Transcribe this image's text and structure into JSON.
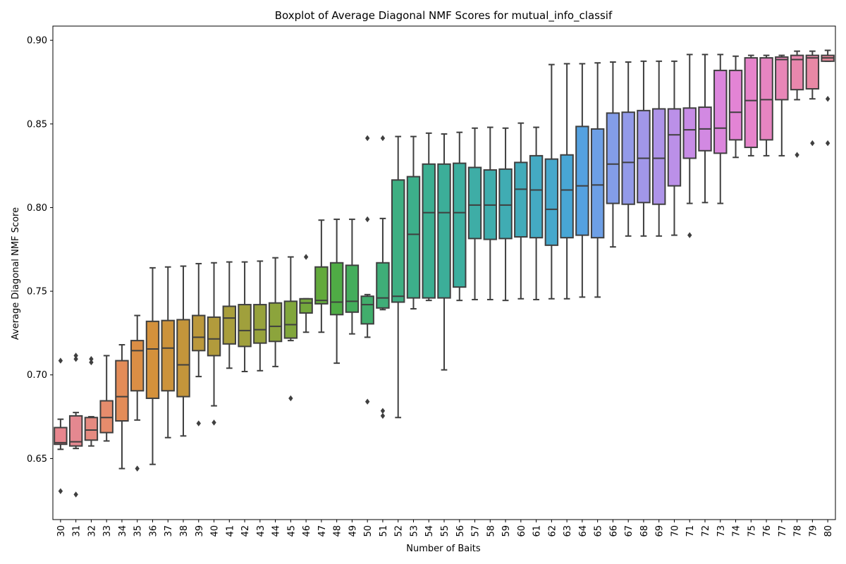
{
  "chart_data": {
    "type": "box",
    "title": "Boxplot of Average Diagonal NMF Scores for mutual_info_classif",
    "xlabel": "Number of Baits",
    "ylabel": "Average Diagonal NMF Score",
    "ylim": [
      0.6135,
      0.9085
    ],
    "yticks": [
      "0.65",
      "0.70",
      "0.75",
      "0.80",
      "0.85",
      "0.90"
    ],
    "grid": false,
    "legend": "none",
    "line_color": "#3f3f3f",
    "categories": [
      {
        "label": "30",
        "color": "#e8868e",
        "whisker_low": 0.6555,
        "q1": 0.6585,
        "median": 0.6595,
        "q3": 0.6685,
        "whisker_high": 0.6735,
        "outliers": [
          0.7085,
          0.6305
        ]
      },
      {
        "label": "31",
        "color": "#e48890",
        "whisker_low": 0.656,
        "q1": 0.6575,
        "median": 0.66,
        "q3": 0.6755,
        "whisker_high": 0.6775,
        "outliers": [
          0.7115,
          0.7095,
          0.6285
        ]
      },
      {
        "label": "32",
        "color": "#e58a80",
        "whisker_low": 0.6575,
        "q1": 0.661,
        "median": 0.667,
        "q3": 0.6745,
        "whisker_high": 0.675,
        "outliers": [
          0.7095,
          0.7075
        ]
      },
      {
        "label": "33",
        "color": "#e68c6c",
        "whisker_low": 0.6605,
        "q1": 0.6655,
        "median": 0.6745,
        "q3": 0.6845,
        "whisker_high": 0.7115,
        "outliers": []
      },
      {
        "label": "34",
        "color": "#e38c58",
        "whisker_low": 0.644,
        "q1": 0.6725,
        "median": 0.687,
        "q3": 0.7085,
        "whisker_high": 0.718,
        "outliers": []
      },
      {
        "label": "35",
        "color": "#db8e45",
        "whisker_low": 0.673,
        "q1": 0.6905,
        "median": 0.7145,
        "q3": 0.7205,
        "whisker_high": 0.7355,
        "outliers": [
          0.644
        ]
      },
      {
        "label": "36",
        "color": "#d4913b",
        "whisker_low": 0.6465,
        "q1": 0.686,
        "median": 0.7155,
        "q3": 0.732,
        "whisker_high": 0.764,
        "outliers": []
      },
      {
        "label": "37",
        "color": "#cc933b",
        "whisker_low": 0.6625,
        "q1": 0.6905,
        "median": 0.716,
        "q3": 0.7325,
        "whisker_high": 0.7645,
        "outliers": []
      },
      {
        "label": "38",
        "color": "#c4953b",
        "whisker_low": 0.6635,
        "q1": 0.687,
        "median": 0.706,
        "q3": 0.733,
        "whisker_high": 0.765,
        "outliers": []
      },
      {
        "label": "39",
        "color": "#bb983b",
        "whisker_low": 0.699,
        "q1": 0.7145,
        "median": 0.7225,
        "q3": 0.7355,
        "whisker_high": 0.7665,
        "outliers": [
          0.671
        ]
      },
      {
        "label": "40",
        "color": "#b29b3c",
        "whisker_low": 0.6815,
        "q1": 0.7115,
        "median": 0.7215,
        "q3": 0.7345,
        "whisker_high": 0.767,
        "outliers": [
          0.6715
        ]
      },
      {
        "label": "41",
        "color": "#a99e3c",
        "whisker_low": 0.704,
        "q1": 0.7185,
        "median": 0.734,
        "q3": 0.741,
        "whisker_high": 0.7675,
        "outliers": []
      },
      {
        "label": "42",
        "color": "#a0a03c",
        "whisker_low": 0.702,
        "q1": 0.717,
        "median": 0.7265,
        "q3": 0.742,
        "whisker_high": 0.7675,
        "outliers": []
      },
      {
        "label": "43",
        "color": "#97a23c",
        "whisker_low": 0.7025,
        "q1": 0.719,
        "median": 0.727,
        "q3": 0.742,
        "whisker_high": 0.768,
        "outliers": []
      },
      {
        "label": "44",
        "color": "#8ca43c",
        "whisker_low": 0.705,
        "q1": 0.72,
        "median": 0.729,
        "q3": 0.743,
        "whisker_high": 0.77,
        "outliers": []
      },
      {
        "label": "45",
        "color": "#81a63c",
        "whisker_low": 0.7205,
        "q1": 0.722,
        "median": 0.73,
        "q3": 0.744,
        "whisker_high": 0.7705,
        "outliers": [
          0.686
        ]
      },
      {
        "label": "46",
        "color": "#74a83c",
        "whisker_low": 0.7255,
        "q1": 0.737,
        "median": 0.743,
        "q3": 0.7455,
        "whisker_high": 0.7455,
        "outliers": [
          0.7705
        ]
      },
      {
        "label": "47",
        "color": "#63aa3c",
        "whisker_low": 0.7255,
        "q1": 0.7425,
        "median": 0.7445,
        "q3": 0.7645,
        "whisker_high": 0.7925,
        "outliers": []
      },
      {
        "label": "48",
        "color": "#4fac45",
        "whisker_low": 0.707,
        "q1": 0.736,
        "median": 0.7435,
        "q3": 0.767,
        "whisker_high": 0.793,
        "outliers": []
      },
      {
        "label": "49",
        "color": "#44ad5c",
        "whisker_low": 0.7245,
        "q1": 0.7375,
        "median": 0.744,
        "q3": 0.7655,
        "whisker_high": 0.793,
        "outliers": []
      },
      {
        "label": "50",
        "color": "#41ae6c",
        "whisker_low": 0.7225,
        "q1": 0.7305,
        "median": 0.742,
        "q3": 0.747,
        "whisker_high": 0.748,
        "outliers": [
          0.8415,
          0.793,
          0.684
        ]
      },
      {
        "label": "51",
        "color": "#3fae78",
        "whisker_low": 0.739,
        "q1": 0.74,
        "median": 0.746,
        "q3": 0.767,
        "whisker_high": 0.7935,
        "outliers": [
          0.8415,
          0.6785,
          0.6755
        ]
      },
      {
        "label": "52",
        "color": "#3eaf82",
        "whisker_low": 0.6745,
        "q1": 0.7435,
        "median": 0.747,
        "q3": 0.8165,
        "whisker_high": 0.8425,
        "outliers": []
      },
      {
        "label": "53",
        "color": "#3daf8b",
        "whisker_low": 0.7395,
        "q1": 0.746,
        "median": 0.784,
        "q3": 0.8185,
        "whisker_high": 0.8425,
        "outliers": []
      },
      {
        "label": "54",
        "color": "#3caf92",
        "whisker_low": 0.7445,
        "q1": 0.746,
        "median": 0.797,
        "q3": 0.826,
        "whisker_high": 0.8445,
        "outliers": []
      },
      {
        "label": "55",
        "color": "#3cae99",
        "whisker_low": 0.703,
        "q1": 0.746,
        "median": 0.797,
        "q3": 0.826,
        "whisker_high": 0.844,
        "outliers": []
      },
      {
        "label": "56",
        "color": "#3dae9f",
        "whisker_low": 0.7445,
        "q1": 0.7525,
        "median": 0.797,
        "q3": 0.8265,
        "whisker_high": 0.845,
        "outliers": []
      },
      {
        "label": "57",
        "color": "#3eada6",
        "whisker_low": 0.745,
        "q1": 0.7815,
        "median": 0.8015,
        "q3": 0.824,
        "whisker_high": 0.8475,
        "outliers": []
      },
      {
        "label": "58",
        "color": "#3fadad",
        "whisker_low": 0.745,
        "q1": 0.781,
        "median": 0.8015,
        "q3": 0.8225,
        "whisker_high": 0.848,
        "outliers": []
      },
      {
        "label": "59",
        "color": "#40acb3",
        "whisker_low": 0.7445,
        "q1": 0.7815,
        "median": 0.8015,
        "q3": 0.823,
        "whisker_high": 0.8475,
        "outliers": []
      },
      {
        "label": "60",
        "color": "#42abba",
        "whisker_low": 0.7455,
        "q1": 0.7825,
        "median": 0.811,
        "q3": 0.827,
        "whisker_high": 0.8505,
        "outliers": []
      },
      {
        "label": "61",
        "color": "#44aac3",
        "whisker_low": 0.745,
        "q1": 0.782,
        "median": 0.8105,
        "q3": 0.831,
        "whisker_high": 0.848,
        "outliers": []
      },
      {
        "label": "62",
        "color": "#46a8cc",
        "whisker_low": 0.7455,
        "q1": 0.7775,
        "median": 0.799,
        "q3": 0.829,
        "whisker_high": 0.8855,
        "outliers": []
      },
      {
        "label": "63",
        "color": "#48a6d5",
        "whisker_low": 0.7455,
        "q1": 0.782,
        "median": 0.8105,
        "q3": 0.8315,
        "whisker_high": 0.886,
        "outliers": []
      },
      {
        "label": "64",
        "color": "#54a1e0",
        "whisker_low": 0.7465,
        "q1": 0.7835,
        "median": 0.813,
        "q3": 0.8485,
        "whisker_high": 0.886,
        "outliers": []
      },
      {
        "label": "65",
        "color": "#6d9fe6",
        "whisker_low": 0.7465,
        "q1": 0.782,
        "median": 0.8135,
        "q3": 0.847,
        "whisker_high": 0.8865,
        "outliers": []
      },
      {
        "label": "66",
        "color": "#839de8",
        "whisker_low": 0.7765,
        "q1": 0.8025,
        "median": 0.826,
        "q3": 0.8565,
        "whisker_high": 0.887,
        "outliers": []
      },
      {
        "label": "67",
        "color": "#939ae9",
        "whisker_low": 0.783,
        "q1": 0.802,
        "median": 0.827,
        "q3": 0.857,
        "whisker_high": 0.887,
        "outliers": []
      },
      {
        "label": "68",
        "color": "#a197e9",
        "whisker_low": 0.783,
        "q1": 0.803,
        "median": 0.8295,
        "q3": 0.858,
        "whisker_high": 0.8875,
        "outliers": []
      },
      {
        "label": "69",
        "color": "#ae94e9",
        "whisker_low": 0.783,
        "q1": 0.802,
        "median": 0.8295,
        "q3": 0.859,
        "whisker_high": 0.8875,
        "outliers": []
      },
      {
        "label": "70",
        "color": "#bb90e8",
        "whisker_low": 0.7835,
        "q1": 0.813,
        "median": 0.8435,
        "q3": 0.859,
        "whisker_high": 0.8875,
        "outliers": []
      },
      {
        "label": "71",
        "color": "#c78ce6",
        "whisker_low": 0.8025,
        "q1": 0.8295,
        "median": 0.8465,
        "q3": 0.8595,
        "whisker_high": 0.8915,
        "outliers": [
          0.7835
        ]
      },
      {
        "label": "72",
        "color": "#d289e2",
        "whisker_low": 0.803,
        "q1": 0.834,
        "median": 0.847,
        "q3": 0.86,
        "whisker_high": 0.8915,
        "outliers": []
      },
      {
        "label": "73",
        "color": "#dc86dd",
        "whisker_low": 0.8025,
        "q1": 0.8325,
        "median": 0.8475,
        "q3": 0.882,
        "whisker_high": 0.8915,
        "outliers": []
      },
      {
        "label": "74",
        "color": "#e384d5",
        "whisker_low": 0.83,
        "q1": 0.8405,
        "median": 0.857,
        "q3": 0.882,
        "whisker_high": 0.8905,
        "outliers": []
      },
      {
        "label": "75",
        "color": "#e684cb",
        "whisker_low": 0.831,
        "q1": 0.836,
        "median": 0.864,
        "q3": 0.8895,
        "whisker_high": 0.891,
        "outliers": []
      },
      {
        "label": "76",
        "color": "#e785c1",
        "whisker_low": 0.831,
        "q1": 0.8405,
        "median": 0.8645,
        "q3": 0.8895,
        "whisker_high": 0.891,
        "outliers": []
      },
      {
        "label": "77",
        "color": "#e886b7",
        "whisker_low": 0.831,
        "q1": 0.8645,
        "median": 0.8885,
        "q3": 0.89,
        "whisker_high": 0.891,
        "outliers": []
      },
      {
        "label": "78",
        "color": "#e887ad",
        "whisker_low": 0.8645,
        "q1": 0.8705,
        "median": 0.8885,
        "q3": 0.891,
        "whisker_high": 0.8935,
        "outliers": [
          0.8315
        ]
      },
      {
        "label": "79",
        "color": "#e888a5",
        "whisker_low": 0.865,
        "q1": 0.871,
        "median": 0.8895,
        "q3": 0.891,
        "whisker_high": 0.8935,
        "outliers": [
          0.8385
        ]
      },
      {
        "label": "80",
        "color": "#e8889c",
        "whisker_low": 0.8875,
        "q1": 0.8875,
        "median": 0.8895,
        "q3": 0.891,
        "whisker_high": 0.894,
        "outliers": [
          0.865,
          0.8385
        ]
      }
    ]
  }
}
